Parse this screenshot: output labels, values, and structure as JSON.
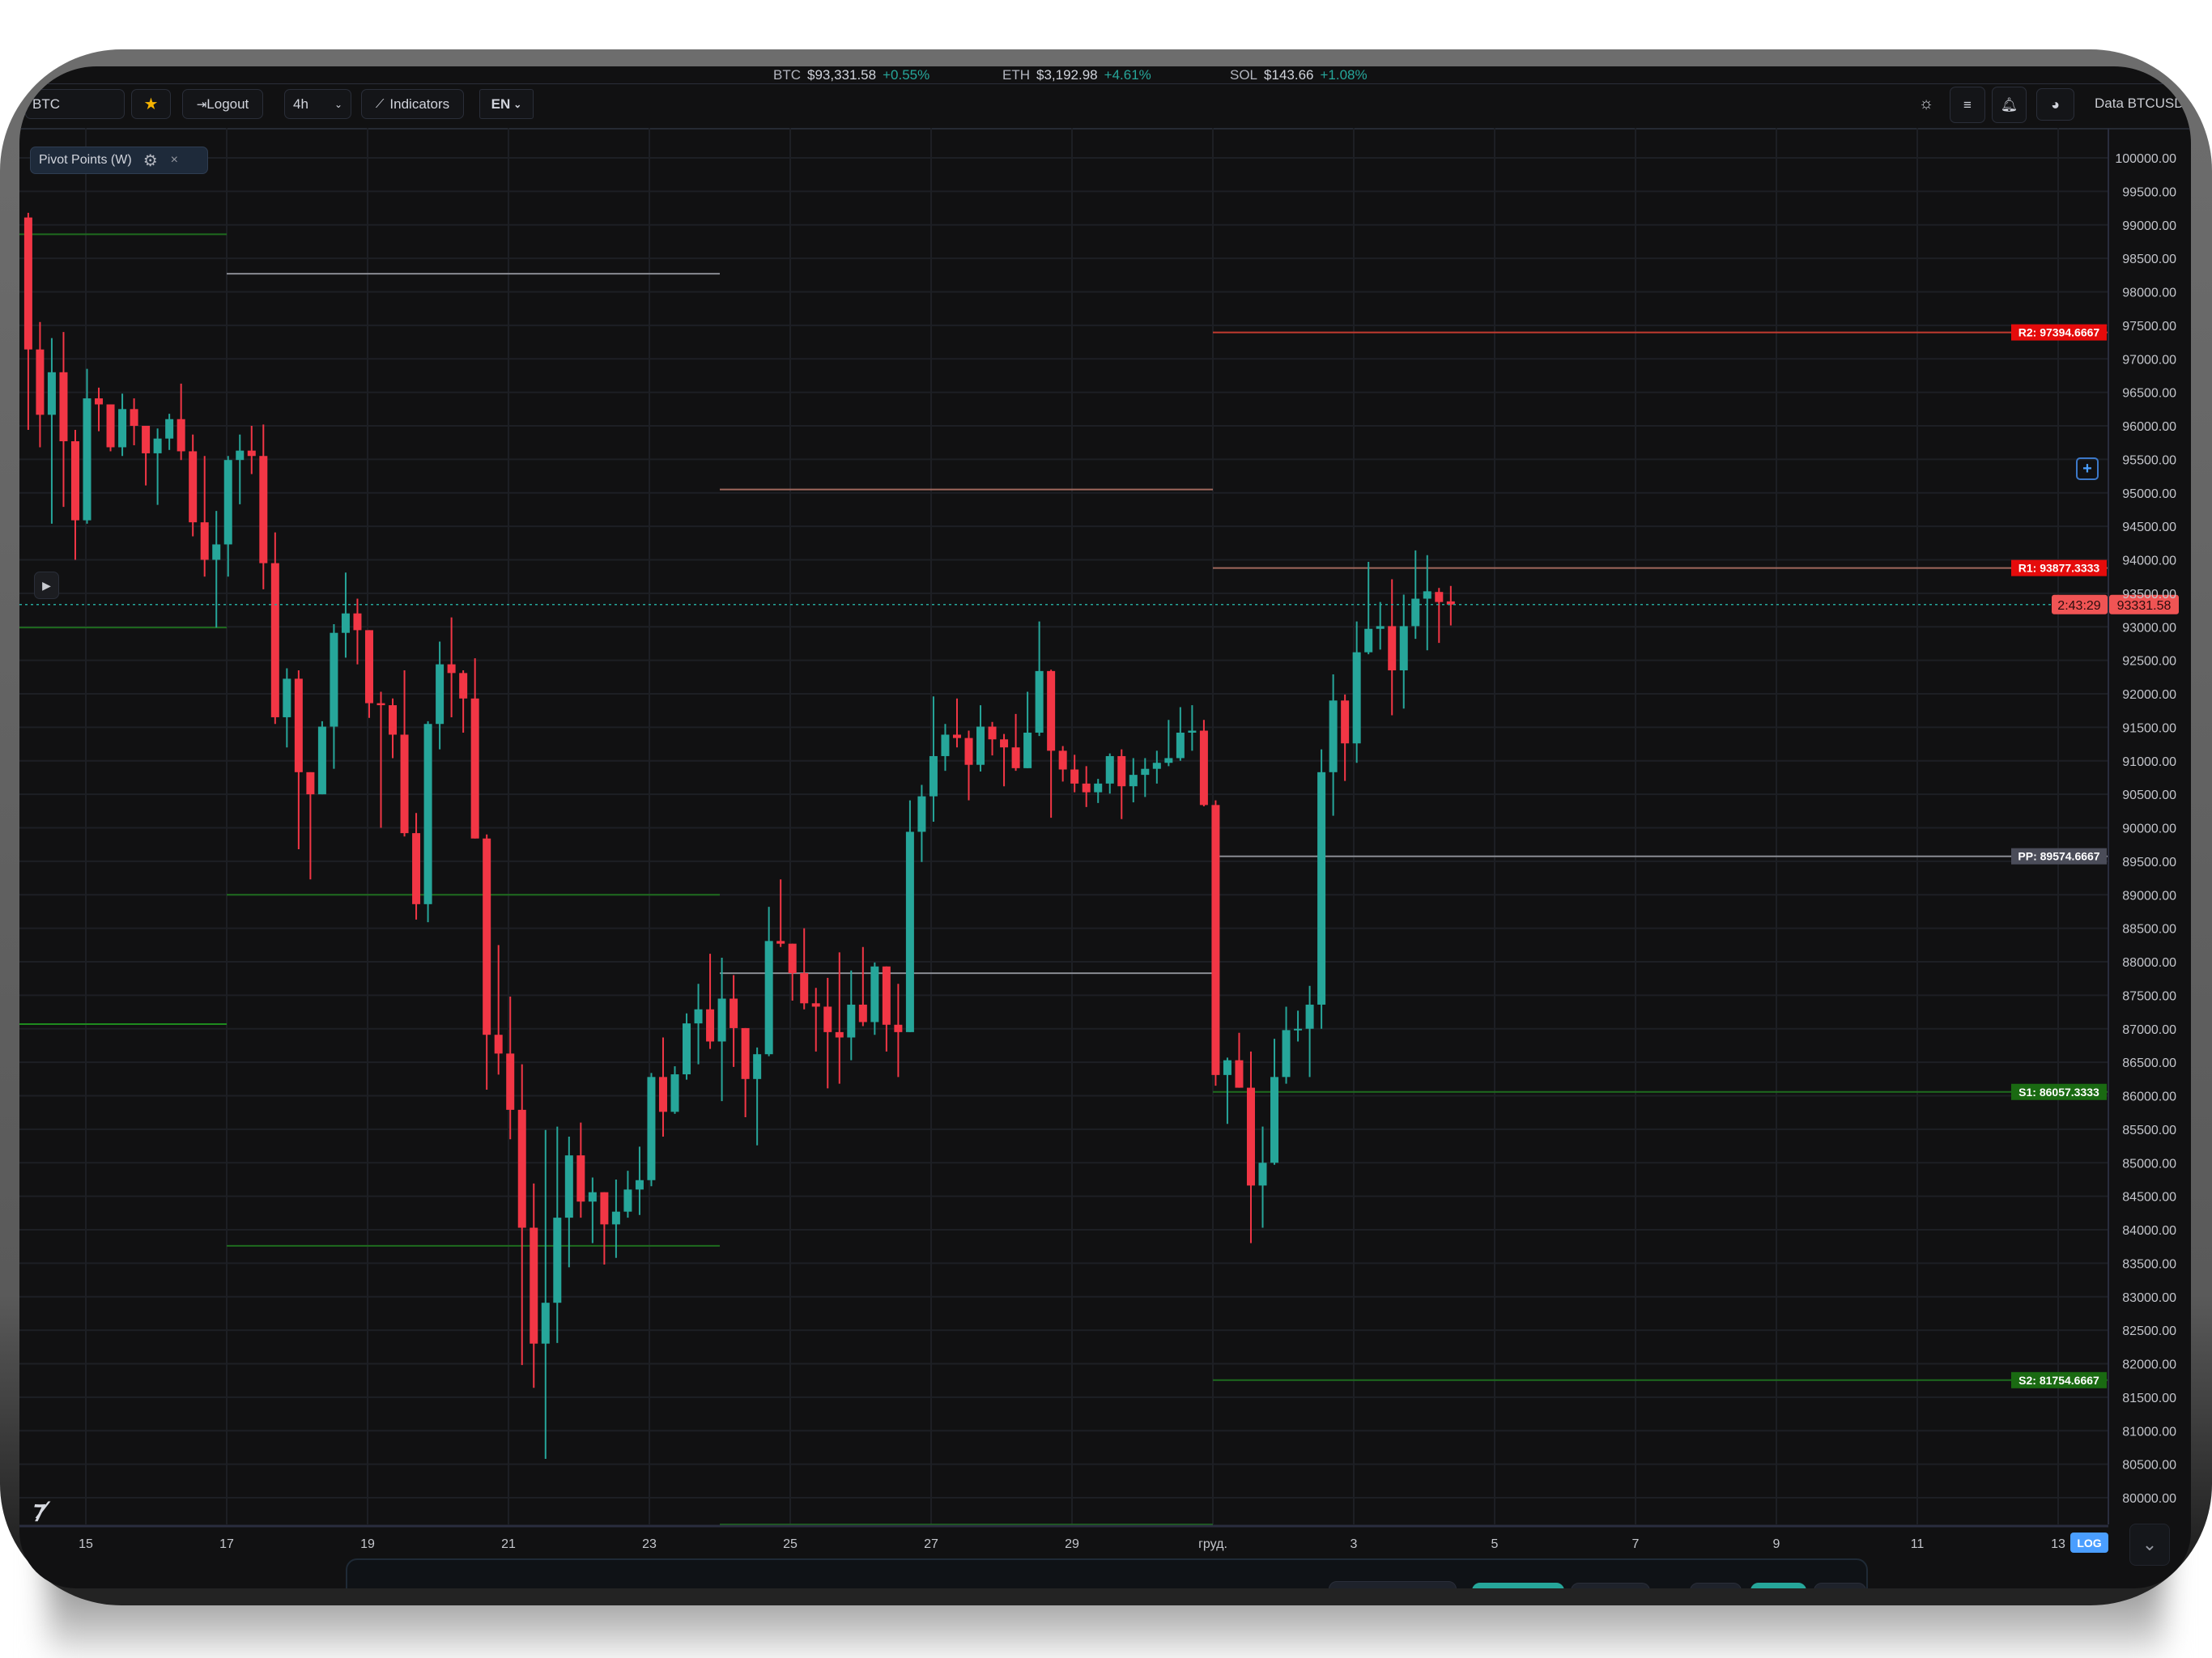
{
  "ticker": [
    {
      "symbol": "BTC",
      "price": "$93,331.58",
      "change": "+0.55%"
    },
    {
      "symbol": "ETH",
      "price": "$3,192.98",
      "change": "+4.61%"
    },
    {
      "symbol": "SOL",
      "price": "$143.66",
      "change": "+1.08%"
    }
  ],
  "toolbar": {
    "symbol_input_value": "BTC",
    "favorite_icon": "star-icon",
    "logout_label": "Logout",
    "interval_value": "4h",
    "indicators_label": "Indicators",
    "language_value": "EN",
    "right_icons": [
      "sun-icon",
      "menu-icon",
      "bell-icon",
      "pie-chart-icon"
    ],
    "data_source_label": "Data BTCUSDT"
  },
  "indicator_chip": {
    "label": "Pivot Points (W)",
    "settings_icon": "gear-icon",
    "close_icon": "close-icon"
  },
  "colors": {
    "up": "#26a69a",
    "down": "#f23645",
    "background": "#111112",
    "accent": "#4a9eff",
    "pivot_r2": "#c23b2f",
    "pivot_r1": "#a0685d",
    "pivot_pp": "#8a8c92",
    "pivot_s": "#1e6b1e"
  },
  "chart_data": {
    "type": "candlestick",
    "symbol": "BTCUSDT",
    "interval": "4h",
    "scale": "log",
    "ylim": [
      79600,
      100450
    ],
    "grid": true,
    "price_ticks": [
      "100000.00",
      "99500.00",
      "99000.00",
      "98500.00",
      "98000.00",
      "97500.00",
      "97000.00",
      "96500.00",
      "96000.00",
      "95500.00",
      "95000.00",
      "94500.00",
      "94000.00",
      "93500.00",
      "93000.00",
      "92500.00",
      "92000.00",
      "91500.00",
      "91000.00",
      "90500.00",
      "90000.00",
      "89500.00",
      "89000.00",
      "88500.00",
      "88000.00",
      "87500.00",
      "87000.00",
      "86500.00",
      "86000.00",
      "85500.00",
      "85000.00",
      "84500.00",
      "84000.00",
      "83500.00",
      "83000.00",
      "82500.00",
      "82000.00",
      "81500.00",
      "81000.00",
      "80500.00",
      "80000.00"
    ],
    "time_ticks": [
      "15",
      "17",
      "19",
      "21",
      "23",
      "25",
      "27",
      "29",
      "груд.",
      "3",
      "5",
      "7",
      "9",
      "11",
      "13"
    ],
    "candles_ohlc": [
      [
        99110,
        99180,
        95940,
        97140
      ],
      [
        97140,
        97550,
        95680,
        96165
      ],
      [
        96165,
        97310,
        94540,
        96800
      ],
      [
        96800,
        97400,
        94790,
        95770
      ],
      [
        95770,
        95940,
        94000,
        94590
      ],
      [
        94590,
        96850,
        94540,
        96410
      ],
      [
        96410,
        96570,
        95920,
        96320
      ],
      [
        96320,
        96320,
        95620,
        95680
      ],
      [
        95680,
        96480,
        95550,
        96250
      ],
      [
        96250,
        96410,
        95710,
        96000
      ],
      [
        96000,
        96000,
        95110,
        95590
      ],
      [
        95590,
        95960,
        94820,
        95810
      ],
      [
        95810,
        96180,
        95640,
        96100
      ],
      [
        96100,
        96630,
        95490,
        95620
      ],
      [
        95620,
        95870,
        94350,
        94560
      ],
      [
        94560,
        95550,
        93750,
        94000
      ],
      [
        94000,
        94730,
        92990,
        94230
      ],
      [
        94230,
        95550,
        93750,
        95490
      ],
      [
        95490,
        95870,
        94830,
        95630
      ],
      [
        95630,
        96000,
        95280,
        95550
      ],
      [
        95550,
        96020,
        93560,
        93950
      ],
      [
        93950,
        94410,
        91550,
        91650
      ],
      [
        91650,
        92380,
        91200,
        92225
      ],
      [
        92225,
        92350,
        89680,
        90830
      ],
      [
        90830,
        90830,
        89230,
        90500
      ],
      [
        90500,
        91590,
        90500,
        91510
      ],
      [
        91510,
        93040,
        90880,
        92910
      ],
      [
        92910,
        93810,
        92540,
        93200
      ],
      [
        93200,
        93420,
        92440,
        92950
      ],
      [
        92950,
        92950,
        91640,
        91860
      ],
      [
        91860,
        92030,
        90000,
        91830
      ],
      [
        91830,
        91930,
        91040,
        91390
      ],
      [
        91390,
        92350,
        89870,
        89920
      ],
      [
        89920,
        90220,
        88630,
        88860
      ],
      [
        88860,
        91590,
        88590,
        91550
      ],
      [
        91550,
        92780,
        91170,
        92440
      ],
      [
        92440,
        93140,
        91650,
        92310
      ],
      [
        92310,
        92350,
        91420,
        91930
      ],
      [
        91930,
        92530,
        89840,
        89840
      ],
      [
        89840,
        89900,
        86090,
        86910
      ],
      [
        86910,
        88250,
        86315,
        86630
      ],
      [
        86630,
        87480,
        85350,
        85790
      ],
      [
        85790,
        86470,
        81980,
        84030
      ],
      [
        84030,
        84690,
        81640,
        82300
      ],
      [
        82300,
        85490,
        80580,
        82910
      ],
      [
        82910,
        85540,
        82310,
        84180
      ],
      [
        84180,
        85390,
        83440,
        85110
      ],
      [
        85110,
        85600,
        84180,
        84420
      ],
      [
        84420,
        84780,
        83800,
        84560
      ],
      [
        84560,
        84560,
        83480,
        84080
      ],
      [
        84080,
        84750,
        83580,
        84270
      ],
      [
        84270,
        84880,
        84180,
        84600
      ],
      [
        84600,
        85240,
        84220,
        84740
      ],
      [
        84740,
        86340,
        84650,
        86280
      ],
      [
        86280,
        86870,
        85390,
        85760
      ],
      [
        85760,
        86440,
        85730,
        86320
      ],
      [
        86320,
        87230,
        86240,
        87080
      ],
      [
        87080,
        87670,
        86470,
        87290
      ],
      [
        87290,
        88120,
        86700,
        86810
      ],
      [
        86810,
        88060,
        85920,
        87450
      ],
      [
        87450,
        87800,
        86430,
        87010
      ],
      [
        87010,
        87010,
        85680,
        86250
      ],
      [
        86250,
        86720,
        85260,
        86620
      ],
      [
        86620,
        88820,
        86590,
        88310
      ],
      [
        88310,
        89230,
        88220,
        88270
      ],
      [
        88270,
        88270,
        87420,
        87830
      ],
      [
        87830,
        88500,
        87290,
        87380
      ],
      [
        87380,
        87610,
        86660,
        87330
      ],
      [
        87330,
        87760,
        86110,
        86950
      ],
      [
        86950,
        88140,
        86180,
        86870
      ],
      [
        86870,
        87870,
        86530,
        87360
      ],
      [
        87360,
        88220,
        87040,
        87100
      ],
      [
        87100,
        87990,
        86910,
        87930
      ],
      [
        87930,
        87930,
        86660,
        87060
      ],
      [
        87060,
        87670,
        86280,
        86950
      ],
      [
        86950,
        90410,
        86950,
        89940
      ],
      [
        89940,
        90640,
        89490,
        90470
      ],
      [
        90470,
        91960,
        90090,
        91070
      ],
      [
        91070,
        91550,
        90850,
        91390
      ],
      [
        91390,
        91930,
        91200,
        91340
      ],
      [
        91340,
        91450,
        90410,
        90940
      ],
      [
        90940,
        91830,
        90840,
        91510
      ],
      [
        91510,
        91580,
        91080,
        91320
      ],
      [
        91320,
        91400,
        90620,
        91200
      ],
      [
        91200,
        91700,
        90850,
        90890
      ],
      [
        90890,
        92030,
        90890,
        91420
      ],
      [
        91420,
        93080,
        91370,
        92340
      ],
      [
        92340,
        92360,
        90150,
        91150
      ],
      [
        91150,
        91220,
        90690,
        90870
      ],
      [
        90870,
        91090,
        90530,
        90660
      ],
      [
        90660,
        90920,
        90310,
        90530
      ],
      [
        90530,
        90730,
        90370,
        90660
      ],
      [
        90660,
        91110,
        90510,
        91070
      ],
      [
        91070,
        91170,
        90130,
        90620
      ],
      [
        90620,
        91040,
        90380,
        90790
      ],
      [
        90790,
        91040,
        90460,
        90880
      ],
      [
        90880,
        91150,
        90660,
        90970
      ],
      [
        90970,
        91610,
        90920,
        91040
      ],
      [
        91040,
        91800,
        91000,
        91420
      ],
      [
        91420,
        91830,
        91150,
        91450
      ],
      [
        91450,
        91610,
        90320,
        90340
      ],
      [
        90340,
        90410,
        86150,
        86310
      ],
      [
        86310,
        86570,
        85580,
        86530
      ],
      [
        86530,
        86940,
        86120,
        86120
      ],
      [
        86120,
        86660,
        83800,
        84660
      ],
      [
        84660,
        85540,
        84030,
        85000
      ],
      [
        85000,
        86850,
        84970,
        86280
      ],
      [
        86280,
        87330,
        86180,
        86980
      ],
      [
        86980,
        87270,
        86810,
        87000
      ],
      [
        87000,
        87640,
        86280,
        87360
      ],
      [
        87360,
        91170,
        87000,
        90830
      ],
      [
        90830,
        92290,
        90180,
        91900
      ],
      [
        91900,
        91990,
        90700,
        91260
      ],
      [
        91260,
        93080,
        90970,
        92620
      ],
      [
        92620,
        93970,
        92590,
        92970
      ],
      [
        92970,
        93370,
        92660,
        93010
      ],
      [
        93010,
        93710,
        91680,
        92350
      ],
      [
        92350,
        93480,
        91780,
        93010
      ],
      [
        93010,
        94140,
        92820,
        93420
      ],
      [
        93420,
        94070,
        92650,
        93530
      ],
      [
        93520,
        93580,
        92760,
        93370
      ],
      [
        93380,
        93610,
        93020,
        93331.58
      ]
    ],
    "last_price": "93331.58",
    "candle_countdown": "2:43:29",
    "pivot_segments": [
      {
        "from": "",
        "to": "Nov 17",
        "levels": [
          {
            "price": 98860,
            "color": "#1e6b1e"
          },
          {
            "price": 92990,
            "color": "#1e6b1e"
          },
          {
            "price": 87070,
            "color": "#1e8a1e"
          }
        ]
      },
      {
        "from": "Nov 17",
        "to": "Nov 24",
        "levels": [
          {
            "price": 98270,
            "color": "#8a8c92"
          },
          {
            "price": 89000,
            "color": "#1e6b1e"
          },
          {
            "price": 83760,
            "color": "#1e6b1e"
          }
        ]
      },
      {
        "from": "Nov 24",
        "to": "Dec 1",
        "levels": [
          {
            "price": 95050,
            "color": "#a0685d"
          },
          {
            "price": 87830,
            "color": "#8a8c92"
          },
          {
            "price": 79600,
            "color": "#1e6b1e"
          }
        ]
      },
      {
        "from": "Dec 1",
        "to": "",
        "levels": [
          {
            "name": "R2",
            "label": "R2: 97394.6667",
            "price": 97394.6667,
            "color": "#c23b2f",
            "label_bg": "#e50b0b"
          },
          {
            "name": "R1",
            "label": "R1: 93877.3333",
            "price": 93877.3333,
            "color": "#a0685d",
            "label_bg": "#e50b0b"
          },
          {
            "name": "PP",
            "label": "PP: 89574.6667",
            "price": 89574.6667,
            "color": "#8a8c92",
            "label_bg": "#4a4c58"
          },
          {
            "name": "S1",
            "label": "S1: 86057.3333",
            "price": 86057.3333,
            "color": "#1e6b1e",
            "label_bg": "#1a6a12"
          },
          {
            "name": "S2",
            "label": "S2: 81754.6667",
            "price": 81754.6667,
            "color": "#1e6b1e",
            "label_bg": "#1a6a12"
          }
        ]
      }
    ]
  },
  "chart_controls": {
    "log_label": "LOG",
    "collapse_icon": "chevron-down-icon",
    "add_icon": "plus-icon",
    "replay_icon": "play-icon",
    "logo": "TV"
  }
}
